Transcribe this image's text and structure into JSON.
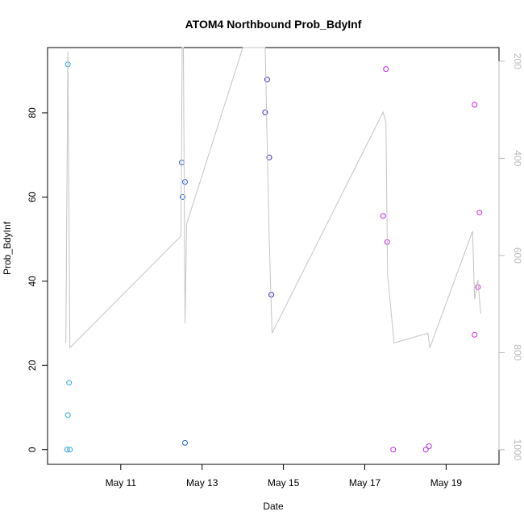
{
  "chart_data": {
    "type": "scatter",
    "title": "ATOM4 Northbound Prob_BdyInf",
    "xlabel": "Date",
    "ylabel": "Prob_BdyInf",
    "x_ticks": [
      {
        "label": "May 11",
        "value": 11
      },
      {
        "label": "May 13",
        "value": 13
      },
      {
        "label": "May 15",
        "value": 15
      },
      {
        "label": "May 17",
        "value": 17
      },
      {
        "label": "May 19",
        "value": 19
      }
    ],
    "y_ticks": [
      0,
      20,
      40,
      60,
      80
    ],
    "y2_ticks": [
      200,
      400,
      600,
      800,
      1000
    ],
    "xlim": [
      9.2,
      20.3
    ],
    "ylim": [
      -3.5,
      95.5
    ],
    "y2lim": [
      1030,
      172
    ],
    "grid": false,
    "legend": "none",
    "series": [
      {
        "kind": "points",
        "color": "#29a3e6",
        "points": [
          [
            9.7,
            91.5
          ],
          [
            9.73,
            15.9
          ],
          [
            9.7,
            8.2
          ],
          [
            9.68,
            0
          ],
          [
            9.75,
            0
          ]
        ]
      },
      {
        "kind": "points",
        "color": "#2d5bd8",
        "points": [
          [
            12.5,
            68.2
          ],
          [
            12.58,
            63.6
          ],
          [
            12.52,
            60
          ],
          [
            12.58,
            1.6
          ]
        ]
      },
      {
        "kind": "points",
        "color": "#3f1fd8",
        "points": [
          [
            14.6,
            87.9
          ],
          [
            14.55,
            80.1
          ],
          [
            14.65,
            69.4
          ],
          [
            14.7,
            36.8
          ]
        ]
      },
      {
        "kind": "points",
        "color": "#b822dd",
        "points": [
          [
            17.52,
            90.4
          ],
          [
            17.45,
            55.5
          ],
          [
            17.55,
            49.3
          ],
          [
            17.7,
            0
          ],
          [
            18.5,
            0
          ],
          [
            18.58,
            0.8
          ]
        ]
      },
      {
        "kind": "points",
        "color": "#e022d8",
        "points": [
          [
            19.7,
            81.9
          ],
          [
            19.82,
            56.3
          ],
          [
            19.78,
            38.6
          ],
          [
            19.7,
            27.3
          ]
        ]
      },
      {
        "kind": "line",
        "axis": "right",
        "color": "#c4c4c4",
        "points": [
          [
            9.65,
            780
          ],
          [
            9.7,
            180
          ],
          [
            9.75,
            790
          ],
          [
            12.48,
            560
          ],
          [
            12.51,
            172
          ],
          [
            12.54,
            172
          ],
          [
            12.58,
            740
          ],
          [
            12.62,
            535
          ],
          [
            14.0,
            172
          ],
          [
            14.55,
            172
          ],
          [
            14.65,
            570
          ],
          [
            14.72,
            760
          ],
          [
            17.45,
            305
          ],
          [
            17.52,
            325
          ],
          [
            17.56,
            640
          ],
          [
            17.72,
            780
          ],
          [
            18.55,
            760
          ],
          [
            18.6,
            790
          ],
          [
            19.65,
            550
          ],
          [
            19.7,
            690
          ],
          [
            19.78,
            650
          ],
          [
            19.85,
            720
          ]
        ]
      }
    ]
  }
}
